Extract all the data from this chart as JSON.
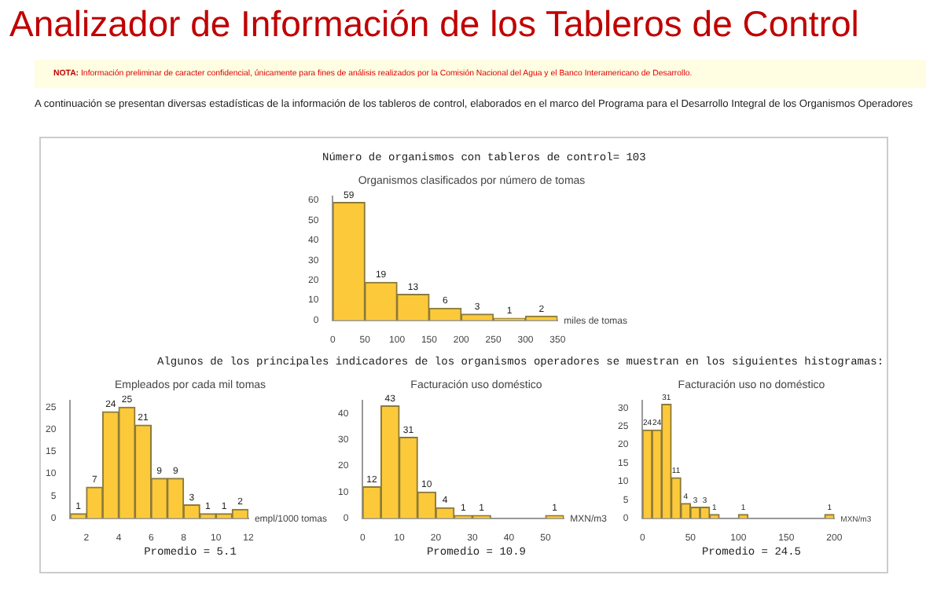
{
  "chart_data": [
    {
      "type": "other",
      "title": "Analizador de Información de los Tableros de Control",
      "annotations": [
        "NOTA: Información preliminar de caracter confidencial, únicamente para fines de análisis realizados por la Comisión Nacional del Agua y el Banco Interamericano de Desarrollo.",
        "A continuación se presentan diversas estadísticas de la información de los tableros de control, elaborados en el marco del Programa para el Desarrollo Integral de los Organismos Operadores",
        "Número de organismos con tableros de control= 103",
        "Algunos de los principales indicadores de los organismos operadores se muestran en los siguientes histogramas:"
      ]
    },
    {
      "type": "histogram",
      "title": "Organismos clasificados por número de tomas",
      "xlabel": "miles de tomas",
      "color": "#fcc93a",
      "bins": [
        0,
        50,
        100,
        150,
        200,
        250,
        300,
        350
      ],
      "values": [
        59,
        19,
        13,
        6,
        3,
        1,
        2
      ],
      "data_labels": true,
      "xlim": [
        0,
        350
      ],
      "xticks": [
        0,
        50,
        100,
        150,
        200,
        250,
        300,
        350
      ],
      "ylim": [
        0,
        62
      ],
      "yticks": [
        0,
        10,
        20,
        30,
        40,
        50,
        60
      ]
    },
    {
      "type": "histogram",
      "title": "Empleados por cada mil tomas",
      "xlabel": "empl/1000 tomas",
      "color": "#fcc93a",
      "bins": [
        1,
        2,
        3,
        4,
        5,
        6,
        7,
        8,
        9,
        10,
        11,
        12
      ],
      "values": [
        1,
        7,
        24,
        25,
        21,
        9,
        9,
        3,
        1,
        1,
        2
      ],
      "data_labels": true,
      "xlim": [
        1,
        12
      ],
      "xticks": [
        2,
        4,
        6,
        8,
        10,
        12
      ],
      "ylim": [
        0,
        26.5
      ],
      "yticks": [
        0,
        5,
        10,
        15,
        20,
        25
      ],
      "annotations": [
        "Promedio =   5.1"
      ]
    },
    {
      "type": "histogram",
      "title": "Facturación uso doméstico",
      "xlabel": "MXN/m3",
      "color": "#fcc93a",
      "bins": [
        0,
        5,
        10,
        15,
        20,
        25,
        30,
        35,
        40,
        45,
        50,
        55
      ],
      "values": [
        12,
        43,
        31,
        10,
        4,
        1,
        1,
        0,
        0,
        0,
        1
      ],
      "value_labels": [
        "12",
        "43",
        "31",
        "10",
        "4",
        "1",
        "1",
        null,
        null,
        null,
        "1"
      ],
      "xlim": [
        0,
        55
      ],
      "xticks": [
        0,
        10,
        20,
        30,
        40,
        50
      ],
      "ylim": [
        0,
        45
      ],
      "yticks": [
        0,
        10,
        20,
        30,
        40
      ],
      "annotations": [
        "Promedio =   10.9"
      ]
    },
    {
      "type": "histogram",
      "title": "Facturación uso no doméstico",
      "xlabel": "MXN/m3",
      "color": "#fcc93a",
      "bins": [
        0,
        10,
        20,
        30,
        40,
        50,
        60,
        70,
        80,
        90,
        100,
        110,
        120,
        130,
        140,
        150,
        160,
        170,
        180,
        190,
        200
      ],
      "values": [
        24,
        24,
        31,
        11,
        4,
        3,
        3,
        1,
        0,
        0,
        1,
        0,
        0,
        0,
        0,
        0,
        0,
        0,
        0,
        1
      ],
      "value_labels": [
        "24",
        "24",
        "31",
        "11",
        "4",
        "3",
        "3",
        "1",
        null,
        null,
        "1",
        null,
        null,
        null,
        null,
        null,
        null,
        null,
        null,
        "1"
      ],
      "xlim": [
        0,
        200
      ],
      "xticks": [
        0,
        50,
        100,
        150,
        200
      ],
      "ylim": [
        0,
        32
      ],
      "yticks": [
        0,
        5,
        10,
        15,
        20,
        25,
        30
      ],
      "annotations": [
        "Promedio =   24.5"
      ]
    }
  ]
}
